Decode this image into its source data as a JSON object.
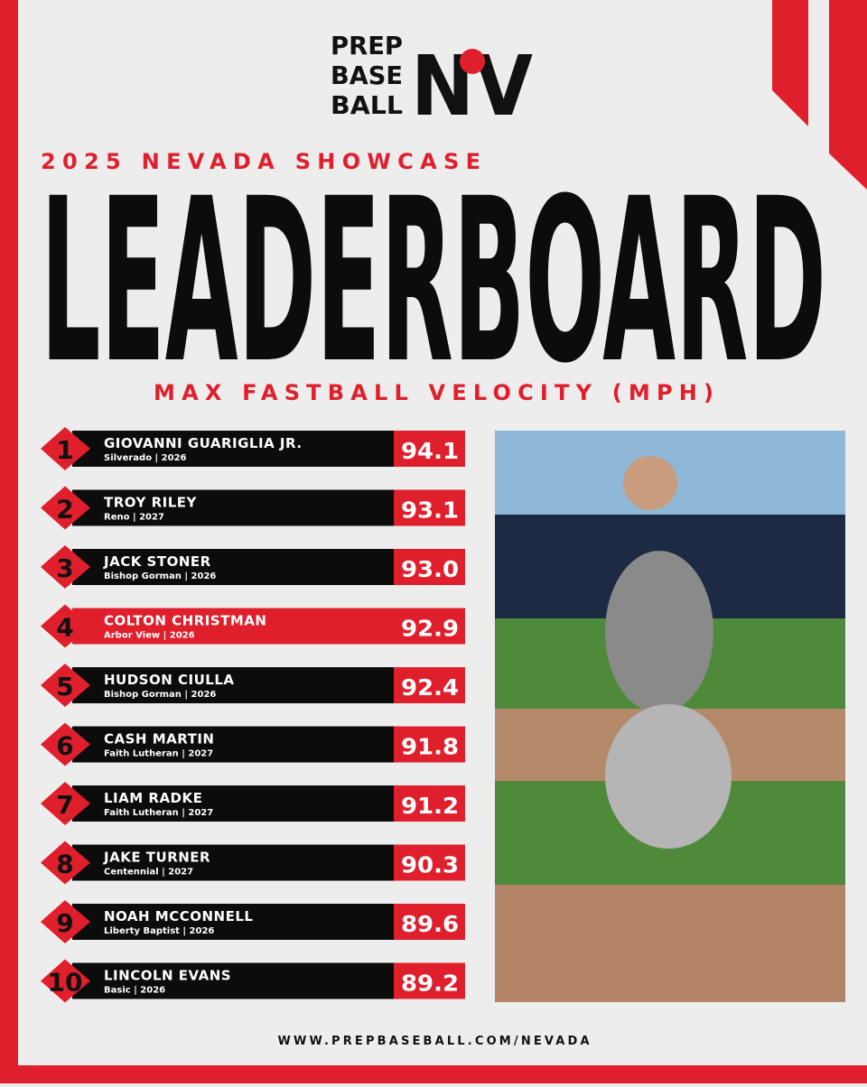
{
  "logo": {
    "line1": "PREP",
    "line2": "BASE",
    "line3": "BALL",
    "mark": "NV"
  },
  "header": {
    "event": "2025 NEVADA SHOWCASE",
    "title": "LEADERBOARD",
    "metric": "MAX FASTBALL VELOCITY (MPH)"
  },
  "rows": [
    {
      "rank": "1",
      "name": "GIOVANNI GUARIGLIA JR.",
      "detail": "Silverado | 2026",
      "value": "94.1"
    },
    {
      "rank": "2",
      "name": "TROY RILEY",
      "detail": "Reno | 2027",
      "value": "93.1"
    },
    {
      "rank": "3",
      "name": "JACK STONER",
      "detail": "Bishop Gorman | 2026",
      "value": "93.0"
    },
    {
      "rank": "4",
      "name": "COLTON CHRISTMAN",
      "detail": "Arbor View | 2026",
      "value": "92.9"
    },
    {
      "rank": "5",
      "name": "HUDSON CIULLA",
      "detail": "Bishop Gorman | 2026",
      "value": "92.4"
    },
    {
      "rank": "6",
      "name": "CASH MARTIN",
      "detail": "Faith Lutheran | 2027",
      "value": "91.8"
    },
    {
      "rank": "7",
      "name": "LIAM RADKE",
      "detail": "Faith Lutheran | 2027",
      "value": "91.2"
    },
    {
      "rank": "8",
      "name": "JAKE TURNER",
      "detail": "Centennial | 2027",
      "value": "90.3"
    },
    {
      "rank": "9",
      "name": "NOAH MCCONNELL",
      "detail": "Liberty Baptist | 2026",
      "value": "89.6"
    },
    {
      "rank": "10",
      "name": "LINCOLN EVANS",
      "detail": "Basic | 2026",
      "value": "89.2"
    }
  ],
  "footer": {
    "url": "WWW.PREPBASEBALL.COM/NEVADA"
  }
}
